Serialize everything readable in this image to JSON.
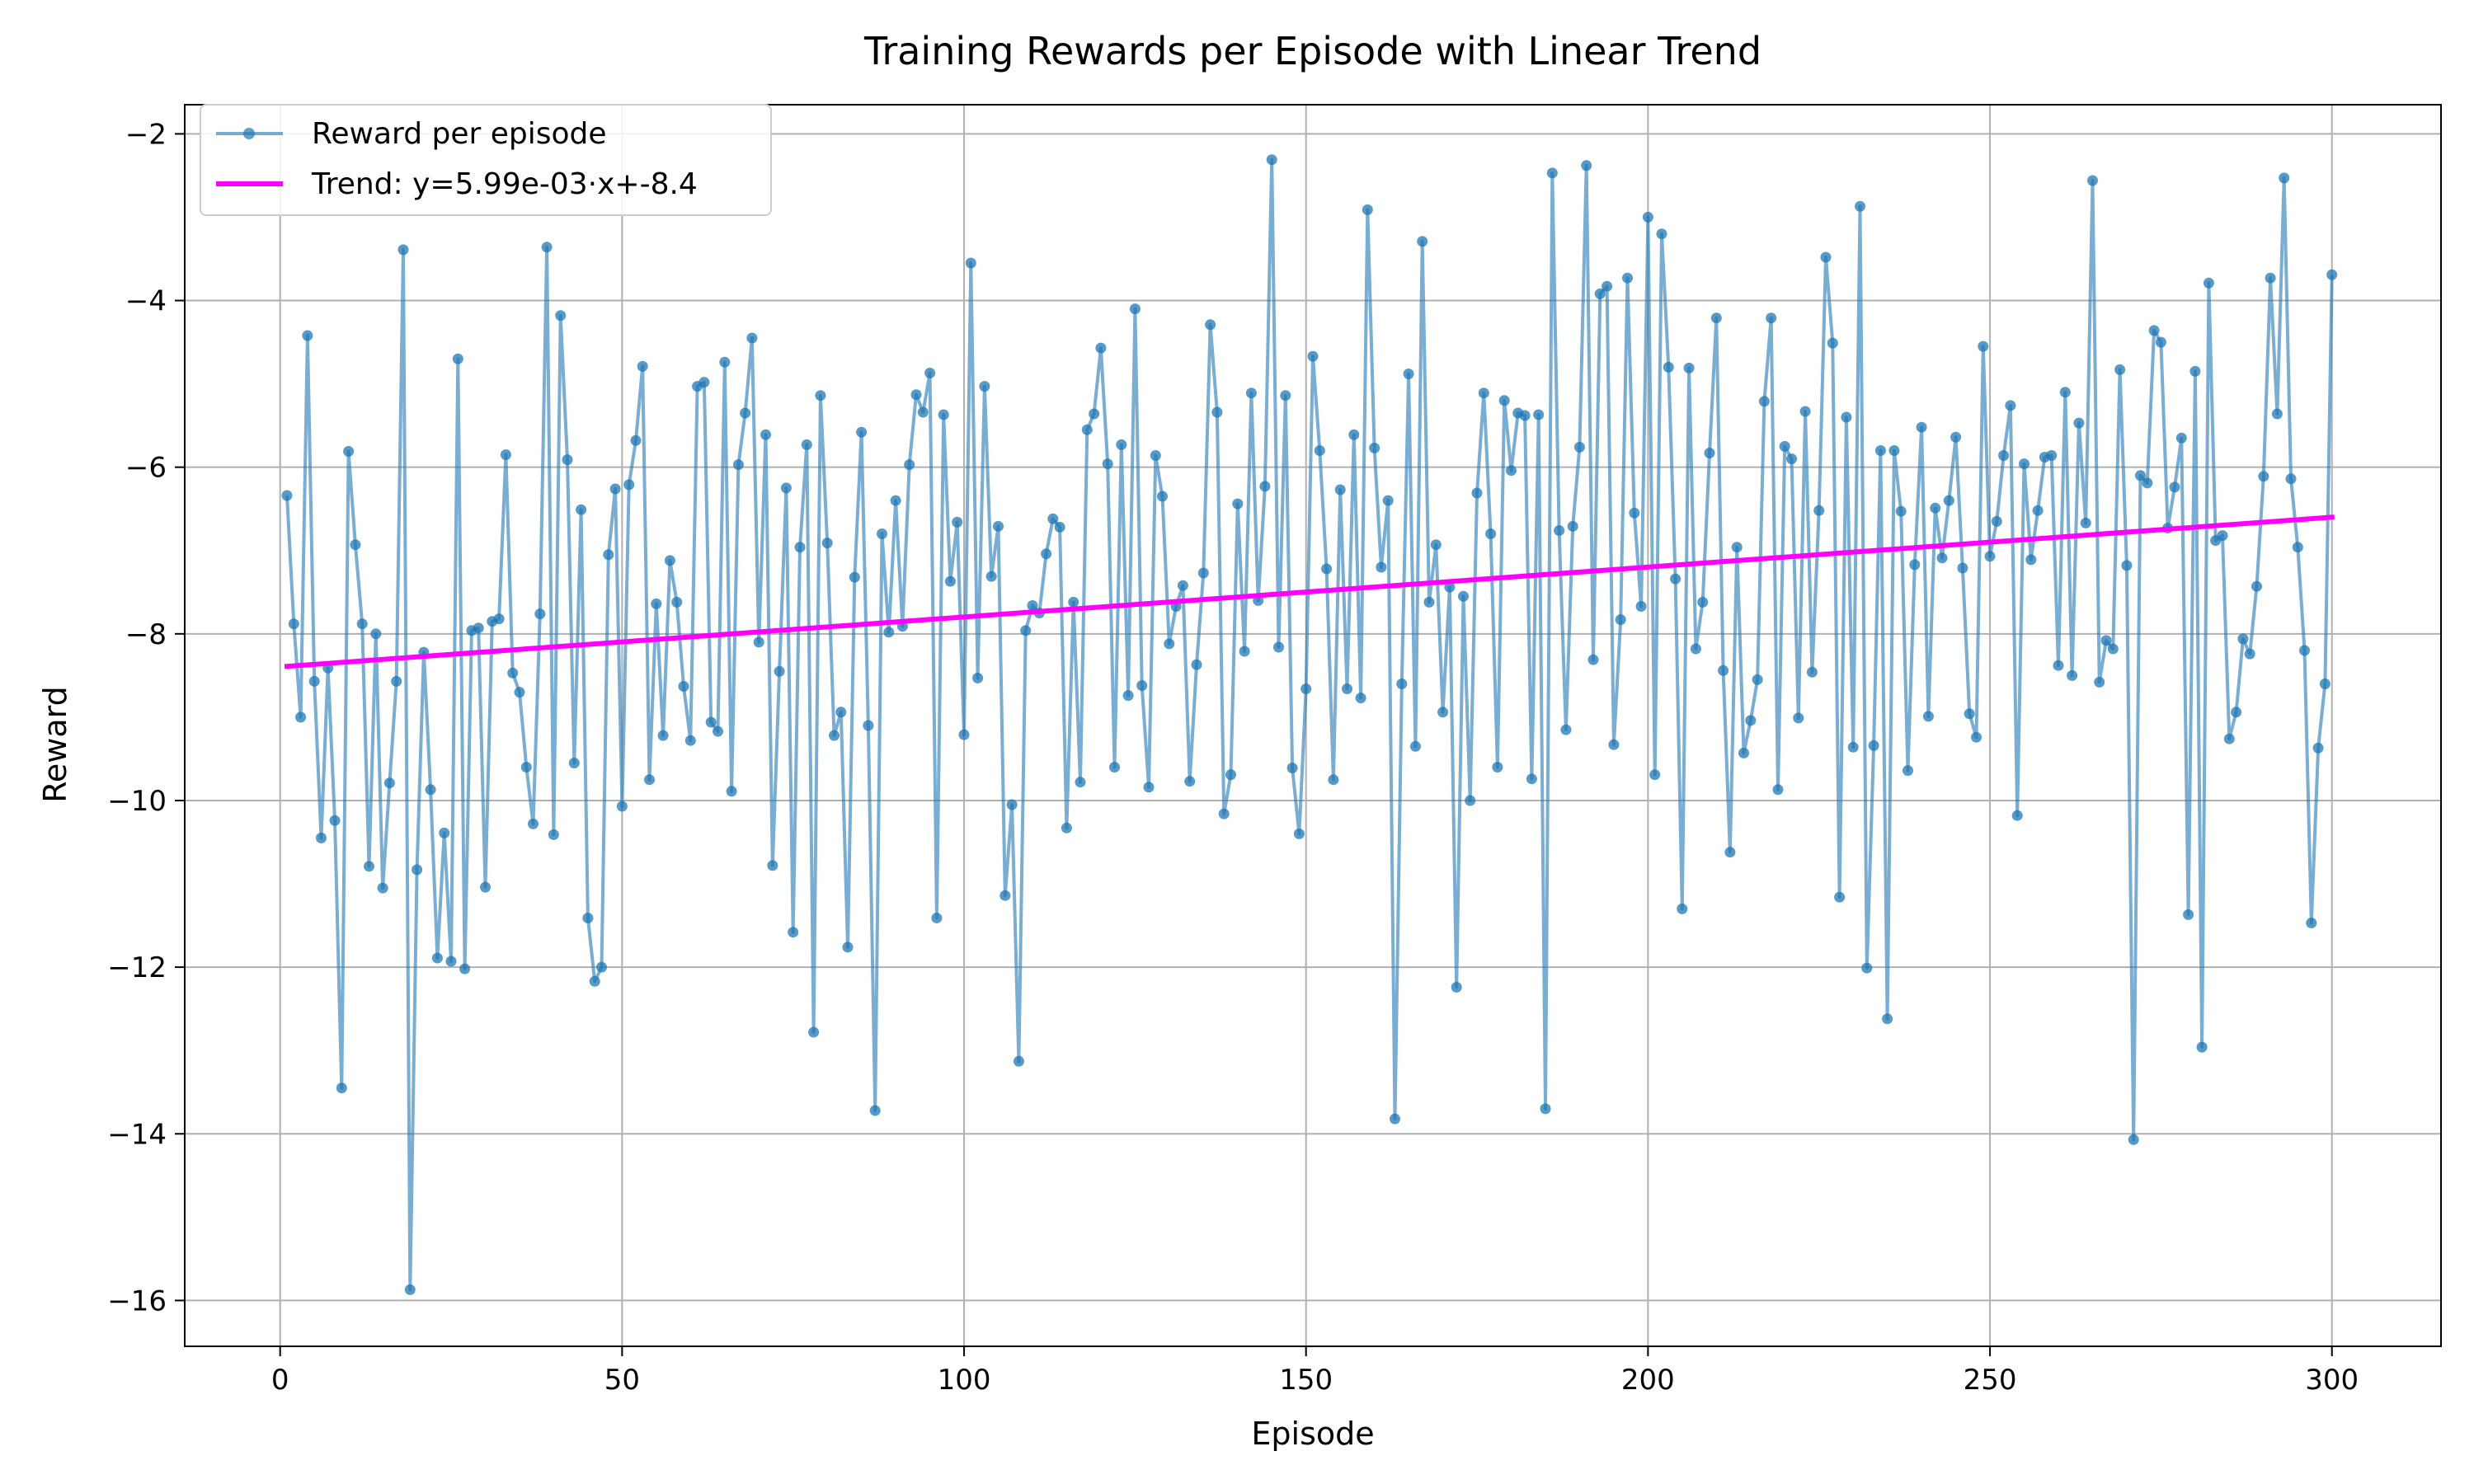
{
  "chart_data": {
    "type": "line",
    "title": "Training Rewards per Episode with Linear Trend",
    "xlabel": "Episode",
    "ylabel": "Reward",
    "xlim": [
      -13.95,
      315.95
    ],
    "ylim": [
      -16.55,
      -1.65
    ],
    "xticks": [
      0,
      50,
      100,
      150,
      200,
      250,
      300
    ],
    "yticks": [
      -16,
      -14,
      -12,
      -10,
      -8,
      -6,
      -4,
      -2
    ],
    "grid": true,
    "legend_position": "top-left",
    "series": [
      {
        "name": "Reward per episode",
        "color": "#1f77b4",
        "x_start": 1,
        "x_step": 1,
        "values": [
          -6.34,
          -7.88,
          -9.0,
          -4.42,
          -8.57,
          -10.45,
          -8.41,
          -10.24,
          -13.45,
          -5.81,
          -6.93,
          -7.88,
          -10.79,
          -8.0,
          -11.05,
          -9.79,
          -8.57,
          -3.39,
          -15.87,
          -10.83,
          -8.22,
          -9.87,
          -11.89,
          -10.39,
          -11.93,
          -4.7,
          -12.02,
          -7.96,
          -7.93,
          -11.04,
          -7.85,
          -7.82,
          -5.85,
          -8.47,
          -8.7,
          -9.6,
          -10.28,
          -7.76,
          -3.36,
          -10.41,
          -4.18,
          -5.91,
          -9.55,
          -6.51,
          -11.41,
          -12.17,
          -12.0,
          -7.05,
          -6.26,
          -10.07,
          -6.21,
          -5.68,
          -4.79,
          -9.75,
          -7.64,
          -9.22,
          -7.12,
          -7.62,
          -8.63,
          -9.28,
          -5.03,
          -4.98,
          -9.06,
          -9.17,
          -4.74,
          -9.89,
          -5.97,
          -5.35,
          -4.45,
          -8.1,
          -5.61,
          -10.78,
          -8.45,
          -6.25,
          -11.58,
          -6.96,
          -5.73,
          -12.78,
          -5.14,
          -6.91,
          -9.22,
          -8.94,
          -11.76,
          -7.32,
          -5.58,
          -9.1,
          -13.72,
          -6.8,
          -7.98,
          -6.4,
          -7.91,
          -5.97,
          -5.13,
          -5.34,
          -4.87,
          -11.41,
          -5.37,
          -7.37,
          -6.66,
          -9.21,
          -3.55,
          -8.53,
          -5.03,
          -7.31,
          -6.71,
          -11.14,
          -10.05,
          -13.13,
          -7.96,
          -7.66,
          -7.75,
          -7.04,
          -6.62,
          -6.72,
          -10.33,
          -7.62,
          -9.78,
          -5.55,
          -5.36,
          -4.57,
          -5.96,
          -9.6,
          -5.73,
          -8.74,
          -4.1,
          -8.62,
          -9.84,
          -5.86,
          -6.35,
          -8.12,
          -7.67,
          -7.42,
          -9.77,
          -8.37,
          -7.27,
          -4.29,
          -5.34,
          -10.16,
          -9.69,
          -6.44,
          -8.21,
          -5.11,
          -7.6,
          -6.23,
          -2.31,
          -8.16,
          -5.14,
          -9.61,
          -10.4,
          -8.66,
          -4.67,
          -5.8,
          -7.22,
          -9.75,
          -6.27,
          -8.66,
          -5.61,
          -8.77,
          -2.91,
          -5.77,
          -7.2,
          -6.4,
          -13.82,
          -8.6,
          -4.88,
          -9.35,
          -3.29,
          -7.62,
          -6.93,
          -8.94,
          -7.44,
          -12.24,
          -7.55,
          -10.0,
          -6.31,
          -5.11,
          -6.8,
          -9.6,
          -5.2,
          -6.04,
          -5.35,
          -5.38,
          -9.74,
          -5.37,
          -13.7,
          -2.47,
          -6.76,
          -9.15,
          -6.71,
          -5.76,
          -2.38,
          -8.31,
          -3.92,
          -3.83,
          -9.33,
          -7.83,
          -3.73,
          -6.55,
          -7.67,
          -3.0,
          -9.69,
          -3.2,
          -4.8,
          -7.34,
          -11.3,
          -4.81,
          -8.18,
          -7.62,
          -5.83,
          -4.21,
          -8.44,
          -10.62,
          -6.96,
          -9.43,
          -9.04,
          -8.55,
          -5.21,
          -4.21,
          -9.87,
          -5.75,
          -5.9,
          -9.01,
          -5.33,
          -8.46,
          -6.52,
          -3.48,
          -4.51,
          -11.16,
          -5.4,
          -9.36,
          -2.87,
          -12.01,
          -9.34,
          -5.8,
          -12.62,
          -5.8,
          -6.53,
          -9.64,
          -7.17,
          -5.52,
          -8.99,
          -6.49,
          -7.09,
          -6.4,
          -5.64,
          -7.21,
          -8.96,
          -9.24,
          -4.55,
          -7.07,
          -6.65,
          -5.86,
          -5.26,
          -10.18,
          -5.96,
          -7.11,
          -6.52,
          -5.88,
          -5.86,
          -8.38,
          -5.1,
          -8.5,
          -5.47,
          -6.67,
          -2.56,
          -8.58,
          -8.08,
          -8.18,
          -4.83,
          -7.18,
          -14.07,
          -6.1,
          -6.19,
          -4.36,
          -4.5,
          -6.73,
          -6.24,
          -5.65,
          -11.37,
          -4.85,
          -12.96,
          -3.79,
          -6.88,
          -6.82,
          -9.26,
          -8.94,
          -8.06,
          -8.24,
          -7.43,
          -6.11,
          -3.73,
          -5.36,
          -2.53,
          -6.14,
          -6.96,
          -8.2,
          -11.47,
          -9.37,
          -8.6,
          -3.69
        ]
      },
      {
        "name": "Trend: y=5.99e-03·x+-8.4",
        "color": "#ff00ff",
        "x": [
          1,
          300
        ],
        "y": [
          -8.39,
          -6.6
        ]
      }
    ]
  }
}
